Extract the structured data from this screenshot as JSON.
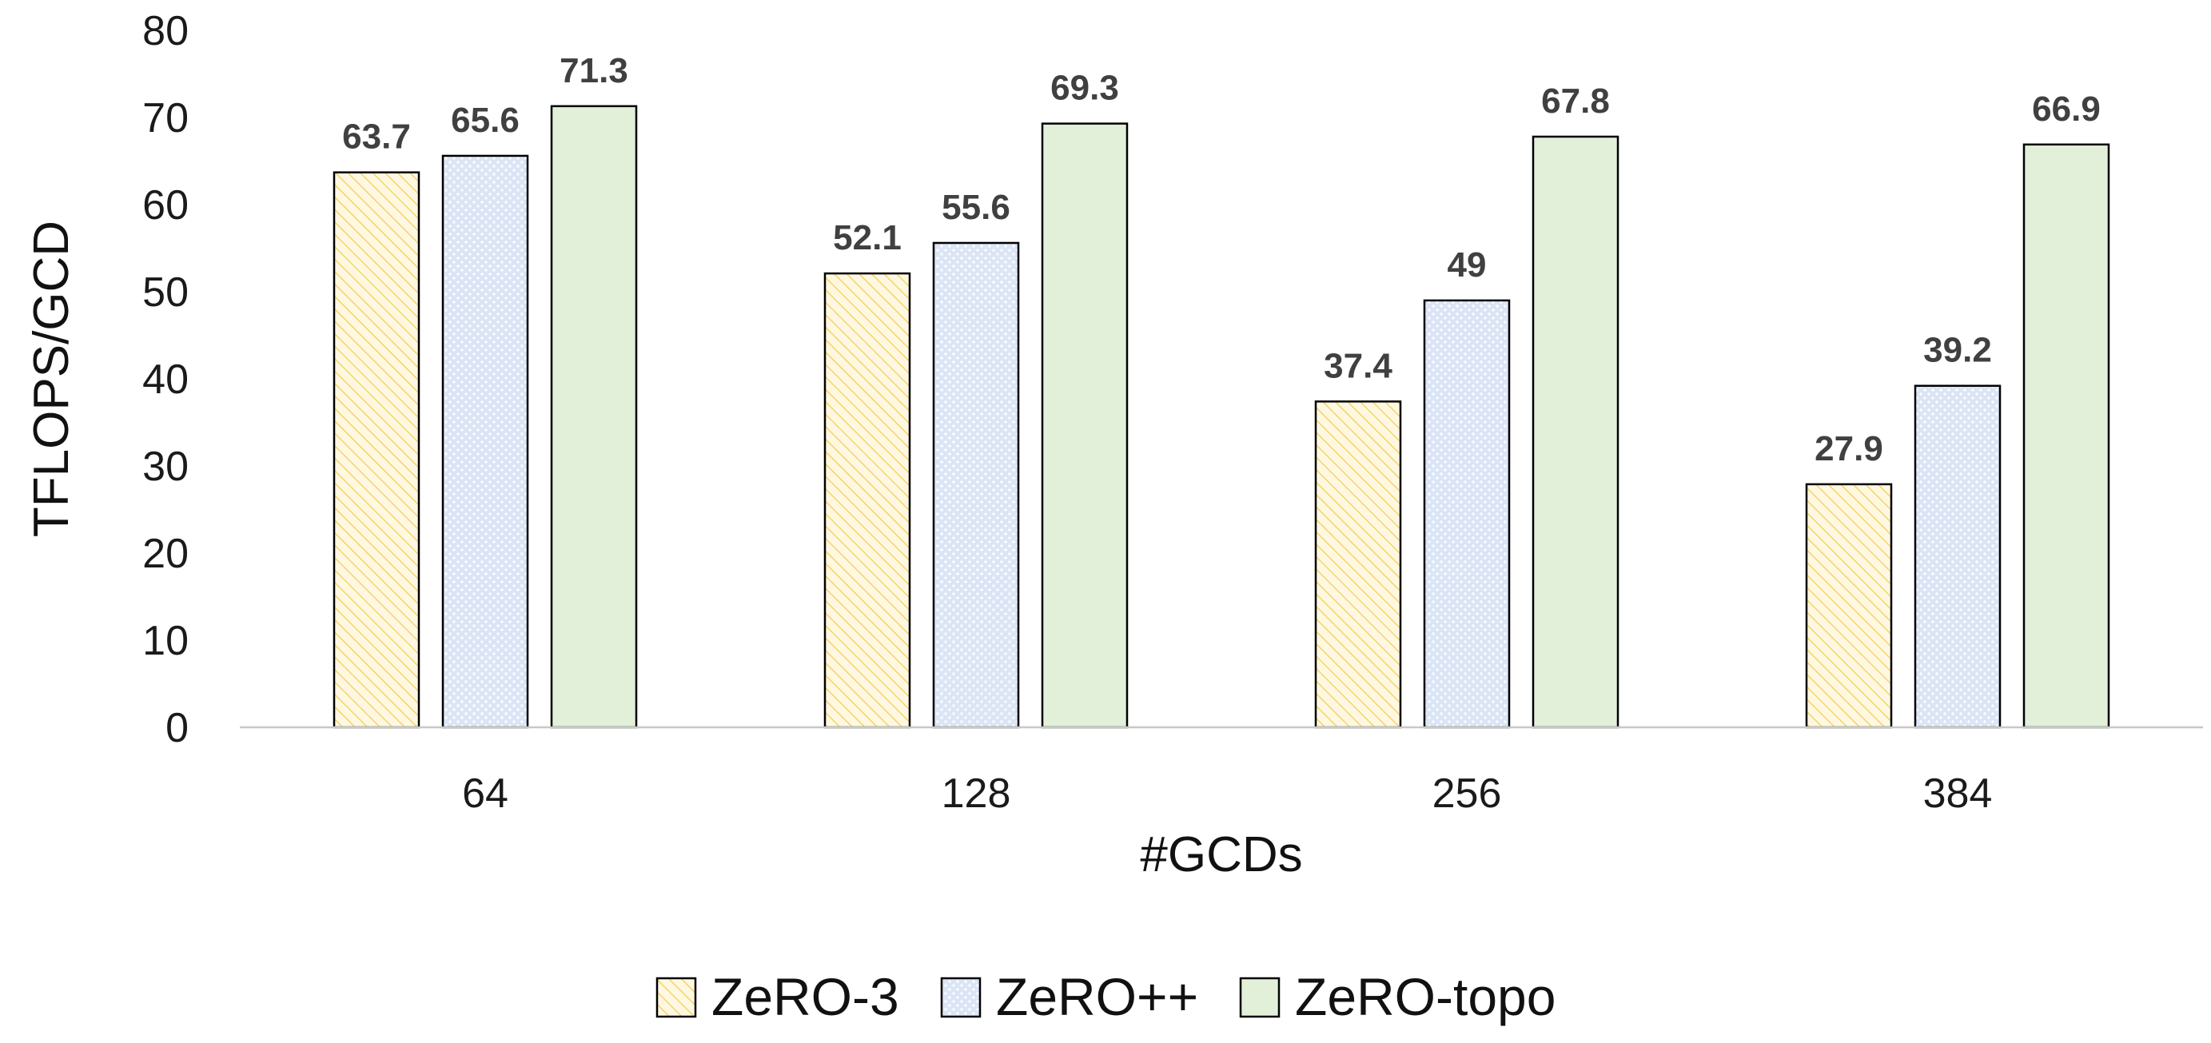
{
  "chart_data": {
    "type": "bar",
    "xlabel": "#GCDs",
    "ylabel": "TFLOPS/GCD",
    "categories": [
      "64",
      "128",
      "256",
      "384"
    ],
    "ylim": [
      0,
      80
    ],
    "yticks": [
      0,
      10,
      20,
      30,
      40,
      50,
      60,
      70,
      80
    ],
    "grid": false,
    "legend_position": "bottom",
    "data_labels": true,
    "series": [
      {
        "name": "ZeRO-3",
        "values": [
          63.7,
          52.1,
          37.4,
          27.9
        ],
        "labels": [
          "63.7",
          "52.1",
          "37.4",
          "27.9"
        ],
        "fill": "#fff8e1",
        "pattern": "diagonal-hatch",
        "pattern_color": "#f5d36b"
      },
      {
        "name": "ZeRO++",
        "values": [
          65.6,
          55.6,
          49,
          39.2
        ],
        "labels": [
          "65.6",
          "55.6",
          "49",
          "39.2"
        ],
        "fill": "#dbe5f6",
        "pattern": "dots",
        "pattern_color": "#ffffff"
      },
      {
        "name": "ZeRO-topo",
        "values": [
          71.3,
          69.3,
          67.8,
          66.9
        ],
        "labels": [
          "71.3",
          "69.3",
          "67.8",
          "66.9"
        ],
        "fill": "#e2efd9",
        "pattern": "solid",
        "pattern_color": "#e2efd9"
      }
    ]
  }
}
